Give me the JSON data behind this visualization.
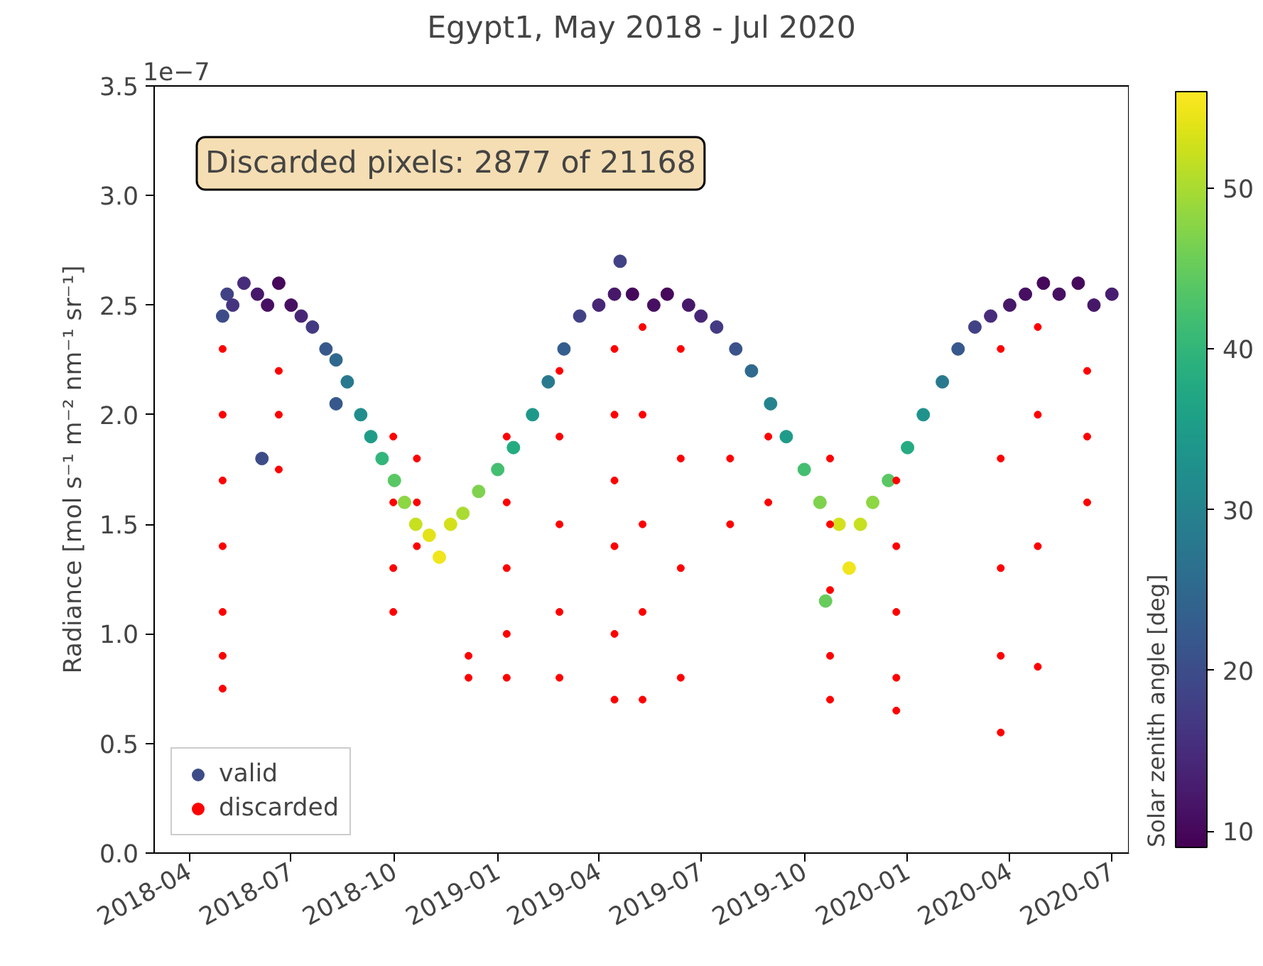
{
  "chart_data": {
    "type": "scatter",
    "title": "Egypt1, May 2018 - Jul 2020",
    "ylabel": "Radiance [mol s⁻¹ m⁻² nm⁻¹ sr⁻¹]",
    "clabel": "Solar zenith angle [deg]",
    "annotations": [
      "Discarded pixels: 2877 of 21168",
      "1e−7"
    ],
    "xlim": [
      "2018-03-01",
      "2020-07-16"
    ],
    "xticks": [
      {
        "value": "2018-04-01",
        "label": "2018-04"
      },
      {
        "value": "2018-07-01",
        "label": "2018-07"
      },
      {
        "value": "2018-10-01",
        "label": "2018-10"
      },
      {
        "value": "2019-01-01",
        "label": "2019-01"
      },
      {
        "value": "2019-04-01",
        "label": "2019-04"
      },
      {
        "value": "2019-07-01",
        "label": "2019-07"
      },
      {
        "value": "2019-10-01",
        "label": "2019-10"
      },
      {
        "value": "2020-01-01",
        "label": "2020-01"
      },
      {
        "value": "2020-04-01",
        "label": "2020-04"
      },
      {
        "value": "2020-07-01",
        "label": "2020-07"
      }
    ],
    "ylim": [
      0,
      3.5
    ],
    "yticks": [
      {
        "value": 0,
        "label": "0.0"
      },
      0.5,
      {
        "value": 1,
        "label": "1.0"
      },
      1.5,
      {
        "value": 2,
        "label": "2.0"
      },
      2.5,
      {
        "value": 3,
        "label": "3.0"
      },
      3.5
    ],
    "clim": [
      9,
      56
    ],
    "cticks": [
      10,
      20,
      30,
      40,
      50
    ],
    "grid": false,
    "legend": "bottom left",
    "marker": "circle",
    "series": [
      {
        "name": "valid",
        "x": [
          "2018-05-01",
          "2018-05-05",
          "2018-05-10",
          "2018-05-20",
          "2018-06-01",
          "2018-06-10",
          "2018-06-20",
          "2018-07-01",
          "2018-07-10",
          "2018-07-20",
          "2018-08-01",
          "2018-08-10",
          "2018-08-20",
          "2018-09-01",
          "2018-09-10",
          "2018-09-20",
          "2018-10-01",
          "2018-10-10",
          "2018-10-20",
          "2018-11-01",
          "2018-11-10",
          "2018-11-20",
          "2018-12-01",
          "2018-12-15",
          "2019-01-01",
          "2019-01-15",
          "2019-02-01",
          "2019-02-15",
          "2019-03-01",
          "2019-03-15",
          "2019-04-01",
          "2019-04-15",
          "2019-04-20",
          "2019-05-01",
          "2019-05-20",
          "2019-06-01",
          "2019-06-20",
          "2019-07-01",
          "2019-07-15",
          "2019-08-01",
          "2019-08-15",
          "2019-09-01",
          "2019-09-15",
          "2019-10-01",
          "2019-10-15",
          "2019-11-01",
          "2019-11-10",
          "2019-11-20",
          "2019-12-01",
          "2019-12-15",
          "2020-01-01",
          "2020-01-15",
          "2020-02-01",
          "2020-02-15",
          "2020-03-01",
          "2020-03-15",
          "2020-04-01",
          "2020-04-15",
          "2020-05-01",
          "2020-05-15",
          "2020-06-01",
          "2020-06-15",
          "2020-07-01",
          "2018-08-10",
          "2018-06-05",
          "2019-10-20"
        ],
        "values": [
          2.45,
          2.55,
          2.5,
          2.6,
          2.55,
          2.5,
          2.6,
          2.5,
          2.45,
          2.4,
          2.3,
          2.25,
          2.15,
          2.0,
          1.9,
          1.8,
          1.7,
          1.6,
          1.5,
          1.45,
          1.35,
          1.5,
          1.55,
          1.65,
          1.75,
          1.85,
          2.0,
          2.15,
          2.3,
          2.45,
          2.5,
          2.55,
          2.7,
          2.55,
          2.5,
          2.55,
          2.5,
          2.45,
          2.4,
          2.3,
          2.2,
          2.05,
          1.9,
          1.75,
          1.6,
          1.5,
          1.3,
          1.5,
          1.6,
          1.7,
          1.85,
          2.0,
          2.15,
          2.3,
          2.4,
          2.45,
          2.5,
          2.55,
          2.6,
          2.55,
          2.6,
          2.5,
          2.55,
          2.05,
          1.8,
          1.15
        ],
        "colors": [
          "#3D4C89",
          "#414186",
          "#45347F",
          "#472C7B",
          "#47186A",
          "#470F62",
          "#45085B",
          "#470F62",
          "#472676",
          "#433A83",
          "#37588C",
          "#2F698D",
          "#29798E",
          "#218D8C",
          "#1E9C89",
          "#32B57A",
          "#59C764",
          "#8DD644",
          "#C7E01F",
          "#E4E318",
          "#F1E51C",
          "#D4E11A",
          "#AADB32",
          "#7ED24E",
          "#44BE70",
          "#25AB81",
          "#1E988A",
          "#29798E",
          "#345E8D",
          "#414186",
          "#472676",
          "#47186A",
          "#414186",
          "#45085B",
          "#470F62",
          "#45085B",
          "#47186A",
          "#472676",
          "#433A83",
          "#3A538B",
          "#2F698D",
          "#25838D",
          "#1E9C89",
          "#44BE70",
          "#7ED24E",
          "#D4E11A",
          "#F1E51C",
          "#C7E01F",
          "#8DD644",
          "#59C764",
          "#25AB81",
          "#1F928C",
          "#29798E",
          "#37588C",
          "#414186",
          "#472C7B",
          "#47186A",
          "#470F62",
          "#45085B",
          "#470F62",
          "#45085B",
          "#47186A",
          "#481E70",
          "#37588C",
          "#3D4C89",
          "#67CC5C"
        ],
        "cvalues": [
          20,
          18,
          16,
          15,
          12,
          11,
          10,
          11,
          14,
          17,
          22,
          25,
          28,
          32,
          35,
          40,
          44,
          48,
          52,
          54,
          55,
          53,
          50,
          47,
          42,
          38,
          34,
          28,
          23,
          18,
          14,
          12,
          18,
          10,
          11,
          10,
          12,
          14,
          17,
          21,
          25,
          30,
          35,
          42,
          47,
          53,
          55,
          52,
          48,
          44,
          38,
          33,
          28,
          22,
          18,
          15,
          12,
          11,
          10,
          11,
          10,
          12,
          13,
          22,
          20,
          45
        ]
      },
      {
        "name": "discarded",
        "color": "#ff0000",
        "x": [
          "2018-05-01",
          "2018-05-01",
          "2018-05-01",
          "2018-05-01",
          "2018-05-01",
          "2018-05-01",
          "2018-05-01",
          "2018-06-20",
          "2018-06-20",
          "2018-06-20",
          "2018-09-30",
          "2018-09-30",
          "2018-09-30",
          "2018-09-30",
          "2018-10-21",
          "2018-10-21",
          "2018-10-21",
          "2018-12-06",
          "2018-12-06",
          "2019-01-09",
          "2019-01-09",
          "2019-01-09",
          "2019-01-09",
          "2019-01-09",
          "2019-02-25",
          "2019-02-25",
          "2019-02-25",
          "2019-02-25",
          "2019-02-25",
          "2019-04-15",
          "2019-04-15",
          "2019-04-15",
          "2019-04-15",
          "2019-04-15",
          "2019-04-15",
          "2019-05-10",
          "2019-05-10",
          "2019-05-10",
          "2019-05-10",
          "2019-05-10",
          "2019-06-13",
          "2019-06-13",
          "2019-06-13",
          "2019-06-13",
          "2019-07-27",
          "2019-07-27",
          "2019-08-30",
          "2019-08-30",
          "2019-10-24",
          "2019-10-24",
          "2019-10-24",
          "2019-10-24",
          "2019-10-24",
          "2019-12-22",
          "2019-12-22",
          "2019-12-22",
          "2019-12-22",
          "2019-12-22",
          "2020-03-24",
          "2020-03-24",
          "2020-03-24",
          "2020-03-24",
          "2020-03-24",
          "2020-04-26",
          "2020-04-26",
          "2020-04-26",
          "2020-04-26",
          "2020-06-09",
          "2020-06-09",
          "2020-06-09"
        ],
        "values": [
          2.3,
          2.0,
          1.7,
          1.4,
          1.1,
          0.9,
          0.75,
          2.2,
          2.0,
          1.75,
          1.9,
          1.6,
          1.3,
          1.1,
          1.8,
          1.6,
          1.4,
          0.9,
          0.8,
          1.9,
          1.6,
          1.3,
          1.0,
          0.8,
          2.2,
          1.9,
          1.5,
          1.1,
          0.8,
          2.3,
          2.0,
          1.7,
          1.4,
          1.0,
          0.7,
          2.4,
          2.0,
          1.5,
          1.1,
          0.7,
          2.3,
          1.8,
          1.3,
          0.8,
          1.8,
          1.5,
          1.9,
          1.6,
          1.8,
          1.5,
          1.2,
          0.9,
          0.7,
          1.7,
          1.4,
          1.1,
          0.8,
          0.65,
          2.3,
          1.8,
          1.3,
          0.9,
          0.55,
          2.4,
          2.0,
          1.4,
          0.85,
          2.2,
          1.9,
          1.6
        ]
      }
    ]
  }
}
